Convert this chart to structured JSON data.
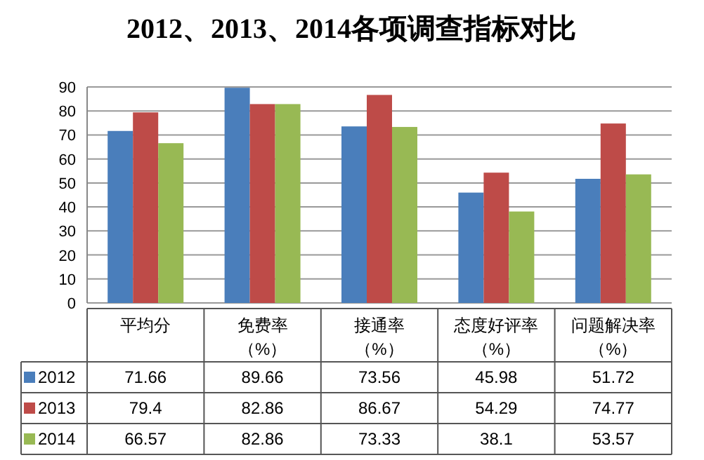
{
  "chart_data": {
    "type": "bar",
    "title": "2012、2013、2014各项调查指标对比",
    "categories": [
      "平均分",
      "免费率（%）",
      "接通率（%）",
      "态度好评率（%）",
      "问题解决率（%）"
    ],
    "series": [
      {
        "name": "2012",
        "color": "#4a7ebb",
        "values": [
          71.66,
          89.66,
          73.56,
          45.98,
          51.72
        ]
      },
      {
        "name": "2013",
        "color": "#be4b48",
        "values": [
          79.4,
          82.86,
          86.67,
          54.29,
          74.77
        ]
      },
      {
        "name": "2014",
        "color": "#98b954",
        "values": [
          66.57,
          82.86,
          73.33,
          38.1,
          53.57
        ]
      }
    ],
    "ylim": [
      0,
      90
    ],
    "yticks": [
      0,
      10,
      20,
      30,
      40,
      50,
      60,
      70,
      80,
      90
    ],
    "grid": "y",
    "legend": "bottom left",
    "data_labels": true
  }
}
